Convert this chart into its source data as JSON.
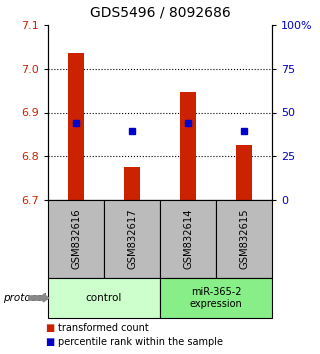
{
  "title": "GDS5496 / 8092686",
  "samples": [
    "GSM832616",
    "GSM832617",
    "GSM832614",
    "GSM832615"
  ],
  "red_bar_values": [
    7.035,
    6.775,
    6.946,
    6.825
  ],
  "blue_dot_values": [
    6.876,
    6.858,
    6.876,
    6.858
  ],
  "bar_bottom": 6.7,
  "ylim_left": [
    6.7,
    7.1
  ],
  "ylim_right": [
    0,
    100
  ],
  "yticks_left": [
    6.7,
    6.8,
    6.9,
    7.0,
    7.1
  ],
  "yticks_right": [
    0,
    25,
    50,
    75,
    100
  ],
  "ytick_labels_right": [
    "0",
    "25",
    "50",
    "75",
    "100%"
  ],
  "group_color_control": "#ccffcc",
  "group_color_mir": "#88ee88",
  "bar_color": "#cc2200",
  "dot_color": "#0000cc",
  "sample_box_color": "#bbbbbb",
  "legend_red_label": "transformed count",
  "legend_blue_label": "percentile rank within the sample",
  "title_fontsize": 10,
  "tick_fontsize": 8
}
